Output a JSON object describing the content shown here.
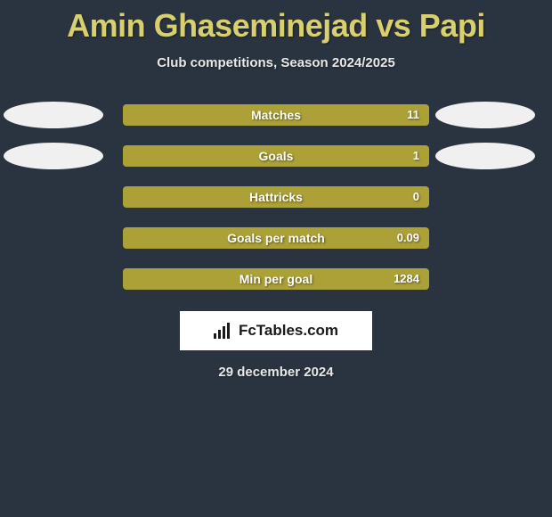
{
  "title": "Amin Ghaseminejad vs Papi",
  "subtitle": "Club competitions, Season 2024/2025",
  "date": "29 december 2024",
  "logo_text": "FcTables.com",
  "colors": {
    "background": "#2a3440",
    "title": "#d8cf6e",
    "bar_fill": "#aba137",
    "bar_track": "#738a4a",
    "ellipse": "#f0f0f0",
    "text_light": "#e8e8e8",
    "logo_bg": "#ffffff"
  },
  "rows": [
    {
      "label": "Matches",
      "value": "11",
      "fill_pct": 100,
      "left_ellipse": true,
      "right_ellipse": true
    },
    {
      "label": "Goals",
      "value": "1",
      "fill_pct": 100,
      "left_ellipse": true,
      "right_ellipse": true
    },
    {
      "label": "Hattricks",
      "value": "0",
      "fill_pct": 100,
      "left_ellipse": false,
      "right_ellipse": false
    },
    {
      "label": "Goals per match",
      "value": "0.09",
      "fill_pct": 100,
      "left_ellipse": false,
      "right_ellipse": false
    },
    {
      "label": "Min per goal",
      "value": "1284",
      "fill_pct": 100,
      "left_ellipse": false,
      "right_ellipse": false
    }
  ]
}
